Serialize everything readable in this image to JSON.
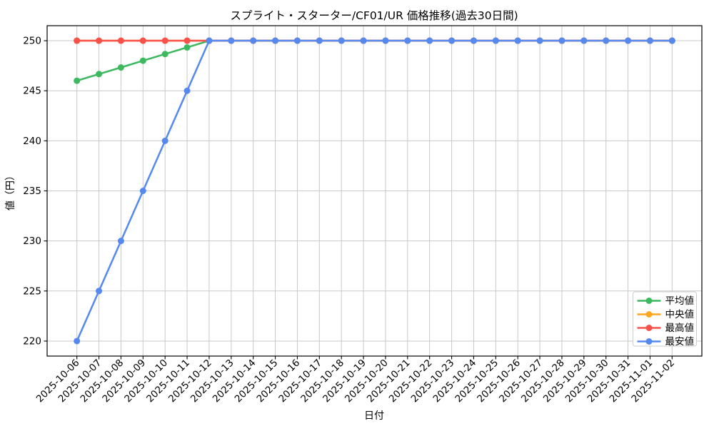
{
  "chart_data": {
    "type": "line",
    "title": "スプライト・スターター/CF01/UR 価格推移(過去30日間)",
    "xlabel": "日付",
    "ylabel": "値（円）",
    "x": [
      "2025-10-06",
      "2025-10-07",
      "2025-10-08",
      "2025-10-09",
      "2025-10-10",
      "2025-10-11",
      "2025-10-12",
      "2025-10-13",
      "2025-10-14",
      "2025-10-15",
      "2025-10-16",
      "2025-10-17",
      "2025-10-18",
      "2025-10-19",
      "2025-10-20",
      "2025-10-21",
      "2025-10-22",
      "2025-10-23",
      "2025-10-24",
      "2025-10-25",
      "2025-10-26",
      "2025-10-27",
      "2025-10-28",
      "2025-10-29",
      "2025-10-30",
      "2025-10-31",
      "2025-11-01",
      "2025-11-02"
    ],
    "series": [
      {
        "key": "avg",
        "name": "平均値",
        "color": "#3cb85f",
        "values": [
          246,
          246.67,
          247.33,
          248,
          248.67,
          249.33,
          250,
          250,
          250,
          250,
          250,
          250,
          250,
          250,
          250,
          250,
          250,
          250,
          250,
          250,
          250,
          250,
          250,
          250,
          250,
          250,
          250,
          250
        ]
      },
      {
        "key": "median",
        "name": "中央値",
        "color": "#ffa41e",
        "values": [
          250,
          250,
          250,
          250,
          250,
          250,
          250,
          250,
          250,
          250,
          250,
          250,
          250,
          250,
          250,
          250,
          250,
          250,
          250,
          250,
          250,
          250,
          250,
          250,
          250,
          250,
          250,
          250
        ]
      },
      {
        "key": "max",
        "name": "最高値",
        "color": "#f8514a",
        "values": [
          250,
          250,
          250,
          250,
          250,
          250,
          250,
          250,
          250,
          250,
          250,
          250,
          250,
          250,
          250,
          250,
          250,
          250,
          250,
          250,
          250,
          250,
          250,
          250,
          250,
          250,
          250,
          250
        ]
      },
      {
        "key": "min",
        "name": "最安値",
        "color": "#5689f0",
        "values": [
          220,
          225,
          230,
          235,
          240,
          245,
          250,
          250,
          250,
          250,
          250,
          250,
          250,
          250,
          250,
          250,
          250,
          250,
          250,
          250,
          250,
          250,
          250,
          250,
          250,
          250,
          250,
          250
        ]
      }
    ],
    "ylim": [
      218.5,
      251.5
    ],
    "yticks": [
      220,
      225,
      230,
      235,
      240,
      245,
      250
    ],
    "grid": true,
    "grid_color": "#c9c9c9",
    "legend_position": "lower right",
    "legend_labels": [
      "平均値",
      "中央値",
      "最高値",
      "最安値"
    ]
  }
}
